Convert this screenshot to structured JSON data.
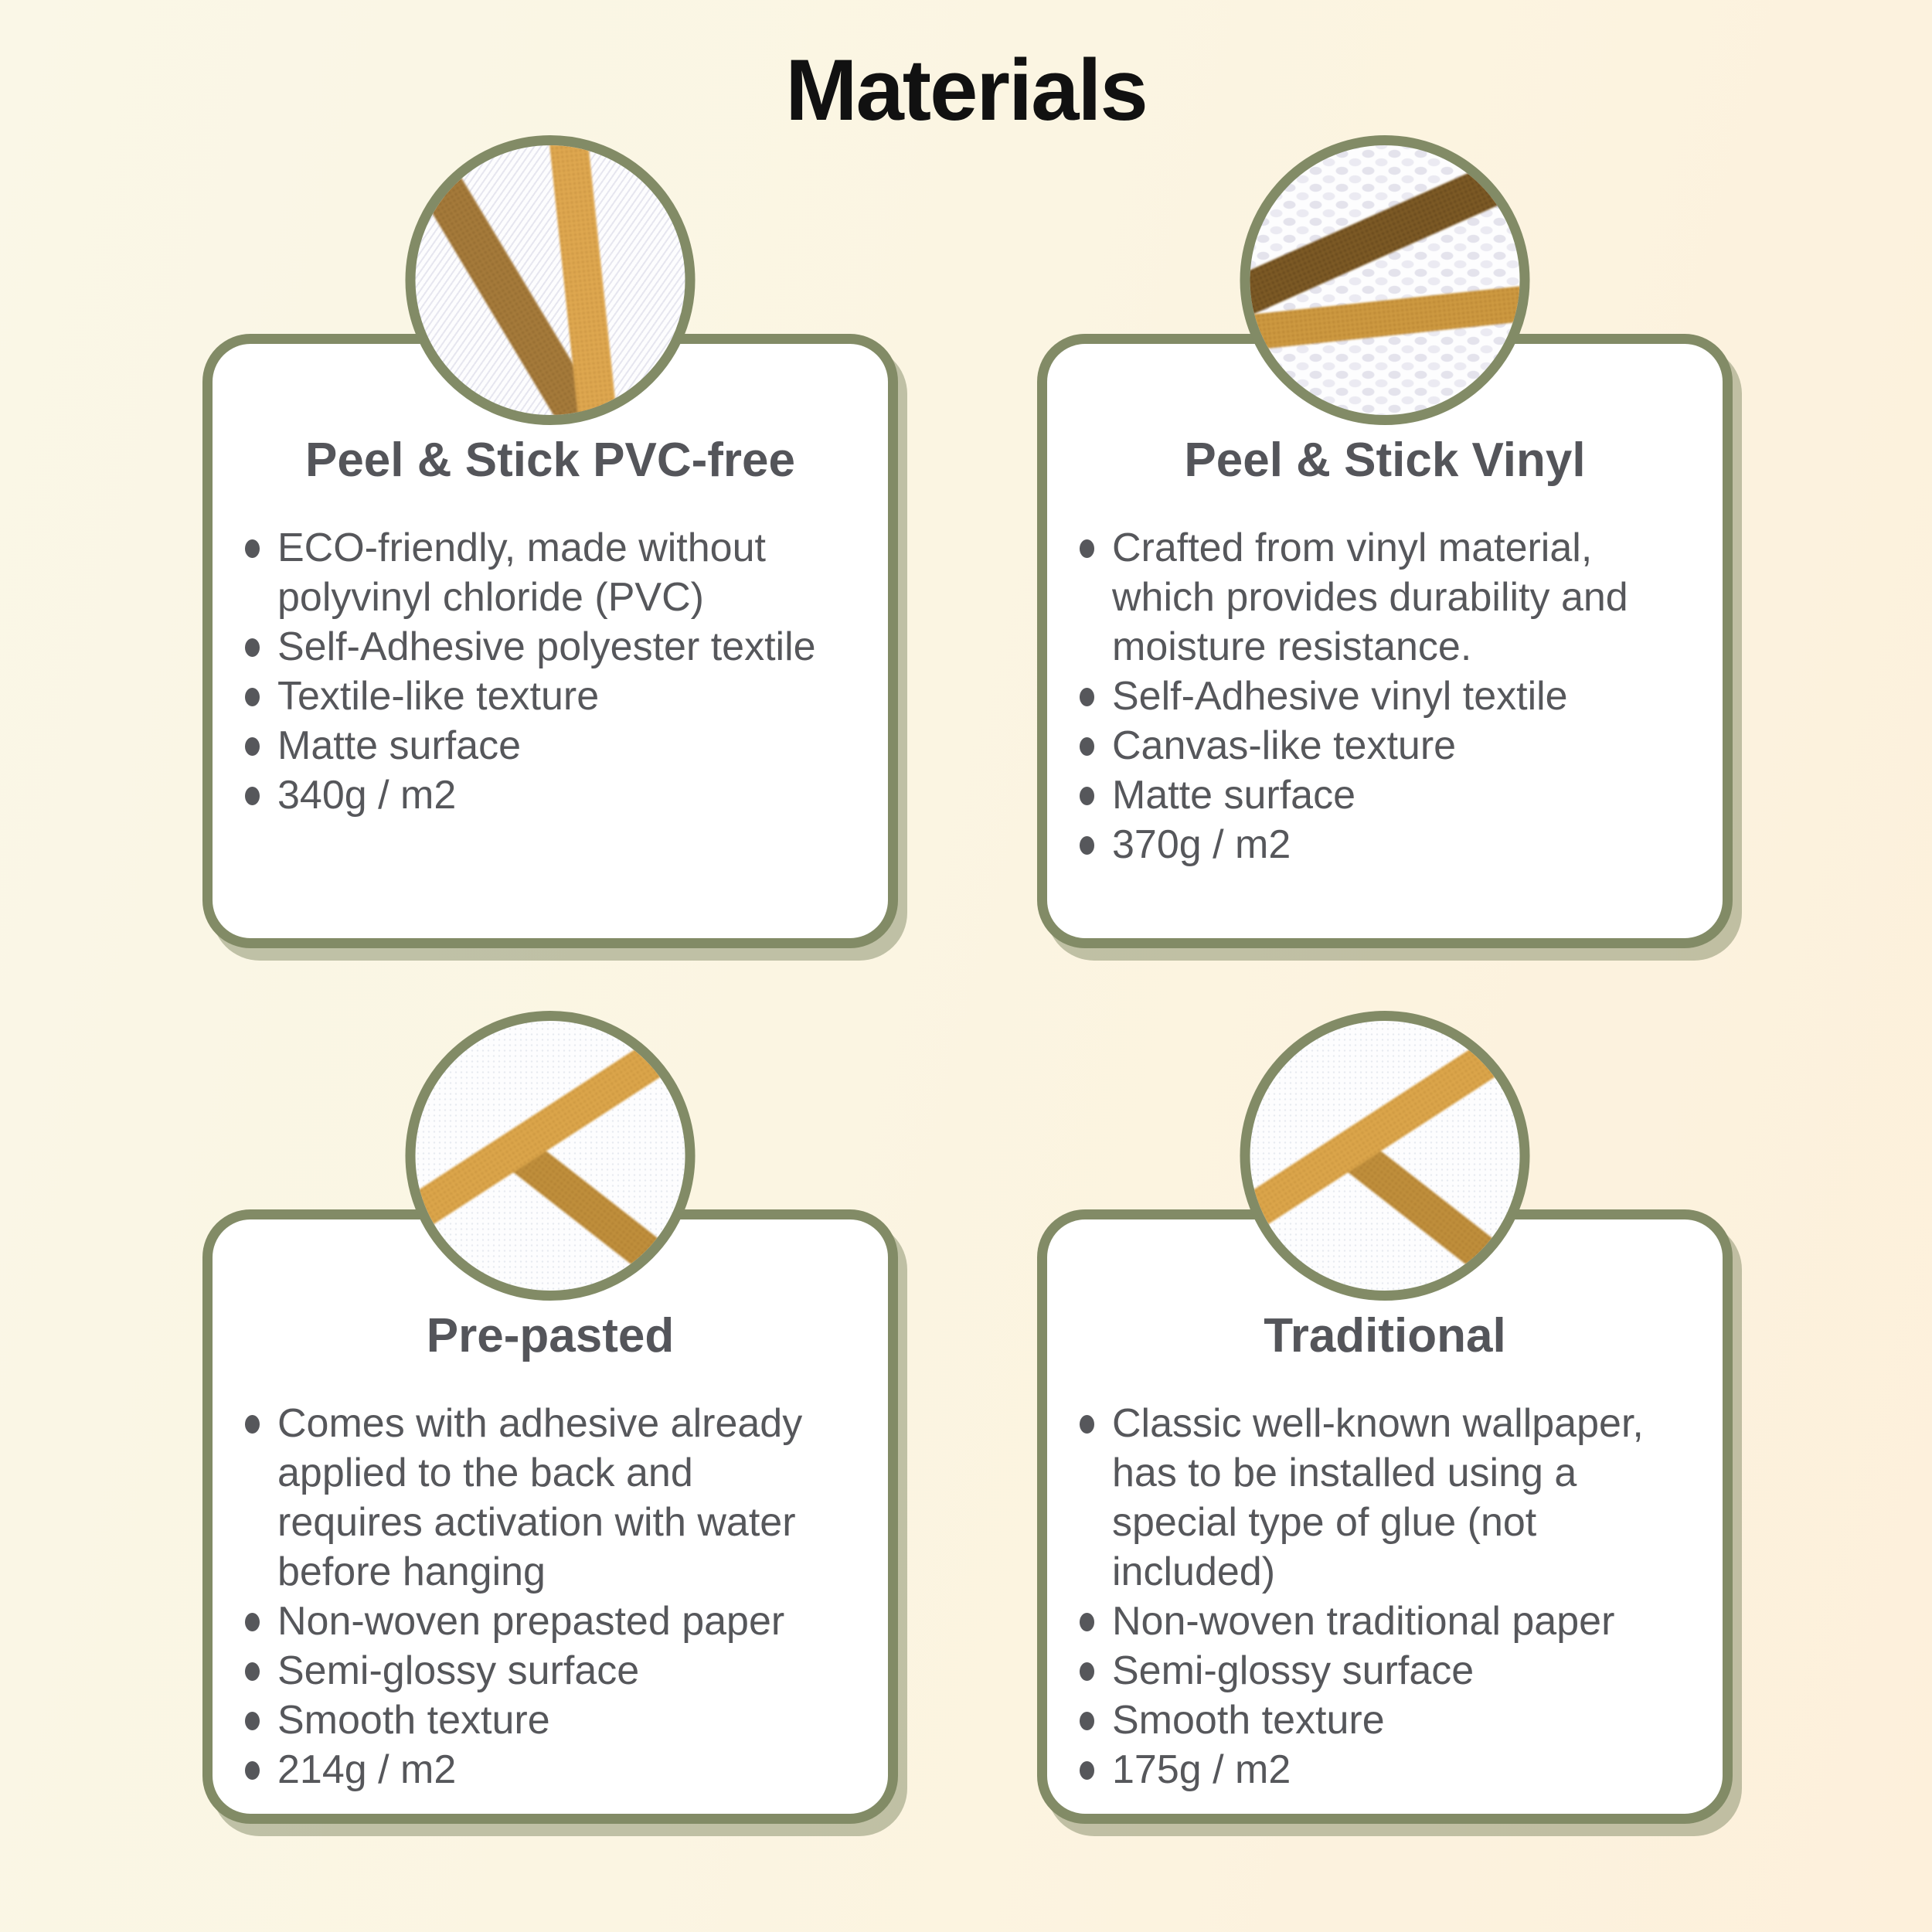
{
  "page": {
    "title": "Materials",
    "colors": {
      "background_left": "#FAF7E7",
      "background_right": "#FDF0DB",
      "accent_olive": "#828B66",
      "card_background": "#FFFFFF",
      "page_title_color": "#111111",
      "card_title_color": "#54555A",
      "body_text_color": "#56575B",
      "stripe_dark_brown": "#7E5B26",
      "stripe_tan": "#A67B3B",
      "stripe_gold": "#DCA64B"
    }
  },
  "cards": [
    {
      "id": "peel-stick-pvc-free",
      "title": "Peel & Stick PVC-free",
      "swatch": "textile-weave-with-tan-and-gold-stripes",
      "bullets": [
        "ECO-friendly, made without polyvinyl chloride (PVC)",
        "Self-Adhesive polyester textile",
        "Textile-like texture",
        "Matte surface",
        "340g / m2"
      ]
    },
    {
      "id": "peel-stick-vinyl",
      "title": "Peel & Stick Vinyl",
      "swatch": "canvas-texture-with-brown-and-gold-stripes",
      "bullets": [
        "Crafted from vinyl material, which provides durability and moisture resistance.",
        "Self-Adhesive vinyl textile",
        "Canvas-like texture",
        "Matte surface",
        "370g / m2"
      ]
    },
    {
      "id": "pre-pasted",
      "title": "Pre-pasted",
      "swatch": "smooth-paper-with-gold-stripes",
      "bullets": [
        "Comes with adhesive already applied to the back and requires activation with water before hanging",
        "Non-woven prepasted paper",
        "Semi-glossy surface",
        "Smooth texture",
        "214g / m2"
      ]
    },
    {
      "id": "traditional",
      "title": "Traditional",
      "swatch": "smooth-paper-with-gold-stripes",
      "bullets": [
        "Classic well-known wallpaper, has to be installed using a special type of glue (not included)",
        "Non-woven traditional paper",
        "Semi-glossy surface",
        "Smooth texture",
        "175g / m2"
      ]
    }
  ]
}
